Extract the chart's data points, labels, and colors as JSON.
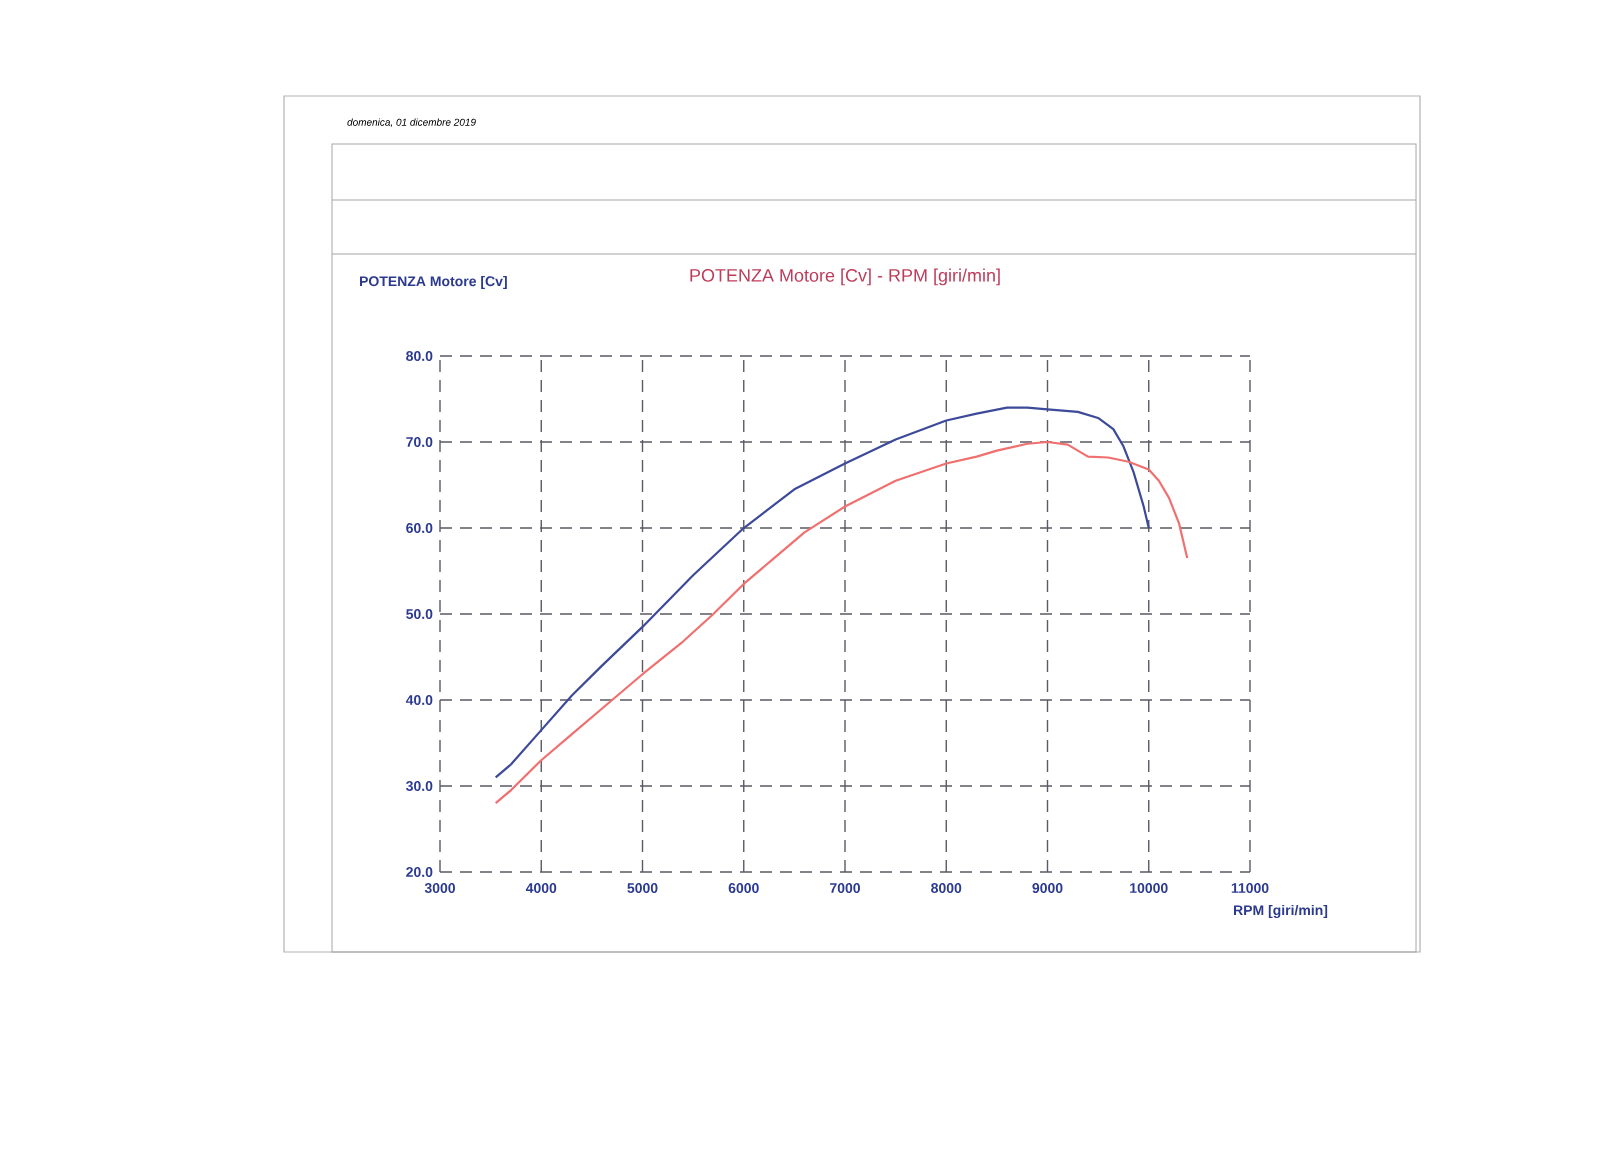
{
  "chart_data": {
    "type": "line",
    "title": "POTENZA Motore [Cv] - RPM [giri/min]",
    "xlabel": "RPM [giri/min]",
    "annotations": [
      "domenica, 01 dicembre 2019",
      "POTENZA Motore [Cv]"
    ],
    "series": [
      {
        "color": "#3d4a9a",
        "x": [
          3550,
          3700,
          4000,
          4300,
          4600,
          5000,
          5500,
          6000,
          6500,
          7000,
          7500,
          8000,
          8300,
          8600,
          8800,
          9000,
          9300,
          9500,
          9650,
          9750,
          9850,
          9950,
          10000
        ],
        "values": [
          31,
          32.5,
          36.5,
          40.5,
          44,
          48.5,
          54.5,
          60,
          64.5,
          67.5,
          70.3,
          72.5,
          73.3,
          74,
          74,
          73.8,
          73.5,
          72.8,
          71.5,
          69.5,
          66.5,
          62.5,
          60
        ]
      },
      {
        "color": "#f07070",
        "x": [
          3550,
          3700,
          4000,
          4300,
          4700,
          5000,
          5400,
          5700,
          6000,
          6300,
          6600,
          7000,
          7500,
          8000,
          8300,
          8500,
          8800,
          9000,
          9200,
          9400,
          9600,
          9800,
          10000,
          10100,
          10200,
          10300,
          10380
        ],
        "values": [
          28,
          29.5,
          33,
          36,
          40,
          43,
          46.8,
          50,
          53.5,
          56.5,
          59.5,
          62.5,
          65.5,
          67.5,
          68.3,
          69,
          69.8,
          70,
          69.7,
          68.3,
          68.2,
          67.7,
          66.8,
          65.5,
          63.5,
          60.5,
          56.5
        ]
      }
    ],
    "xlim": [
      3000,
      11000
    ],
    "ylim": [
      20,
      80
    ],
    "xticks": [
      3000,
      4000,
      5000,
      6000,
      7000,
      8000,
      9000,
      10000,
      11000
    ],
    "yticks": [
      {
        "value": 20,
        "label": "20.0"
      },
      {
        "value": 30,
        "label": "30.0"
      },
      {
        "value": 40,
        "label": "40.0"
      },
      {
        "value": 50,
        "label": "50.0"
      },
      {
        "value": 60,
        "label": "60.0"
      },
      {
        "value": 70,
        "label": "70.0"
      },
      {
        "value": 80,
        "label": "80.0"
      }
    ],
    "grid": true,
    "marker": "none",
    "line_style": "solid"
  }
}
